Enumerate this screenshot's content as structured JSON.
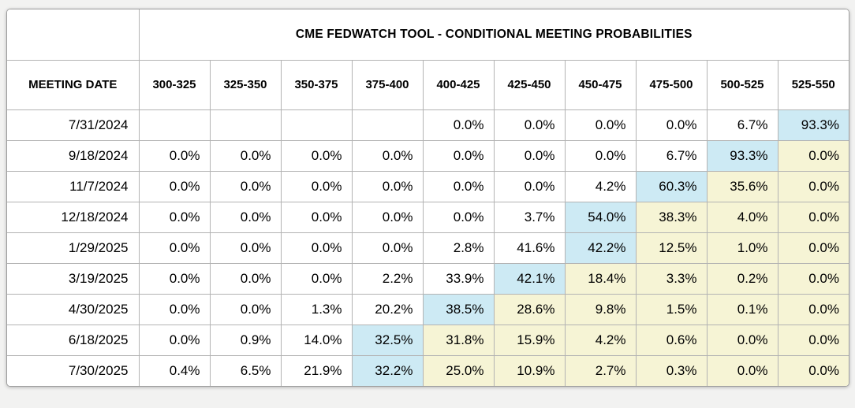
{
  "title": "CME FEDWATCH TOOL - CONDITIONAL MEETING PROBABILITIES",
  "table": {
    "date_header": "MEETING DATE",
    "rate_headers": [
      "300-325",
      "325-350",
      "350-375",
      "375-400",
      "400-425",
      "425-450",
      "450-475",
      "475-500",
      "500-525",
      "525-550"
    ],
    "rows": [
      {
        "date": "7/31/2024",
        "values": [
          "",
          "",
          "",
          "",
          "0.0%",
          "0.0%",
          "0.0%",
          "0.0%",
          "6.7%",
          "93.3%"
        ],
        "max_index": 9
      },
      {
        "date": "9/18/2024",
        "values": [
          "0.0%",
          "0.0%",
          "0.0%",
          "0.0%",
          "0.0%",
          "0.0%",
          "0.0%",
          "6.7%",
          "93.3%",
          "0.0%"
        ],
        "max_index": 8
      },
      {
        "date": "11/7/2024",
        "values": [
          "0.0%",
          "0.0%",
          "0.0%",
          "0.0%",
          "0.0%",
          "0.0%",
          "4.2%",
          "60.3%",
          "35.6%",
          "0.0%"
        ],
        "max_index": 7
      },
      {
        "date": "12/18/2024",
        "values": [
          "0.0%",
          "0.0%",
          "0.0%",
          "0.0%",
          "0.0%",
          "3.7%",
          "54.0%",
          "38.3%",
          "4.0%",
          "0.0%"
        ],
        "max_index": 6
      },
      {
        "date": "1/29/2025",
        "values": [
          "0.0%",
          "0.0%",
          "0.0%",
          "0.0%",
          "2.8%",
          "41.6%",
          "42.2%",
          "12.5%",
          "1.0%",
          "0.0%"
        ],
        "max_index": 6
      },
      {
        "date": "3/19/2025",
        "values": [
          "0.0%",
          "0.0%",
          "0.0%",
          "2.2%",
          "33.9%",
          "42.1%",
          "18.4%",
          "3.3%",
          "0.2%",
          "0.0%"
        ],
        "max_index": 5
      },
      {
        "date": "4/30/2025",
        "values": [
          "0.0%",
          "0.0%",
          "1.3%",
          "20.2%",
          "38.5%",
          "28.6%",
          "9.8%",
          "1.5%",
          "0.1%",
          "0.0%"
        ],
        "max_index": 4
      },
      {
        "date": "6/18/2025",
        "values": [
          "0.0%",
          "0.9%",
          "14.0%",
          "32.5%",
          "31.8%",
          "15.9%",
          "4.2%",
          "0.6%",
          "0.0%",
          "0.0%"
        ],
        "max_index": 3
      },
      {
        "date": "7/30/2025",
        "values": [
          "0.4%",
          "6.5%",
          "21.9%",
          "32.2%",
          "25.0%",
          "10.9%",
          "2.7%",
          "0.3%",
          "0.0%",
          "0.0%"
        ],
        "max_index": 3
      }
    ]
  },
  "colors": {
    "max_highlight": "#cdeaf4",
    "tail_highlight": "#f6f4d5",
    "border": "#b3b3b3",
    "page_background": "#f2f2f1"
  },
  "chart_data": {
    "type": "table",
    "title": "CME FEDWATCH TOOL - CONDITIONAL MEETING PROBABILITIES",
    "units": "percent",
    "columns": [
      "MEETING DATE",
      "300-325",
      "325-350",
      "350-375",
      "375-400",
      "400-425",
      "425-450",
      "450-475",
      "475-500",
      "500-525",
      "525-550"
    ],
    "rows": [
      [
        "7/31/2024",
        null,
        null,
        null,
        null,
        0.0,
        0.0,
        0.0,
        0.0,
        6.7,
        93.3
      ],
      [
        "9/18/2024",
        0.0,
        0.0,
        0.0,
        0.0,
        0.0,
        0.0,
        0.0,
        6.7,
        93.3,
        0.0
      ],
      [
        "11/7/2024",
        0.0,
        0.0,
        0.0,
        0.0,
        0.0,
        0.0,
        4.2,
        60.3,
        35.6,
        0.0
      ],
      [
        "12/18/2024",
        0.0,
        0.0,
        0.0,
        0.0,
        0.0,
        3.7,
        54.0,
        38.3,
        4.0,
        0.0
      ],
      [
        "1/29/2025",
        0.0,
        0.0,
        0.0,
        0.0,
        2.8,
        41.6,
        42.2,
        12.5,
        1.0,
        0.0
      ],
      [
        "3/19/2025",
        0.0,
        0.0,
        0.0,
        2.2,
        33.9,
        42.1,
        18.4,
        3.3,
        0.2,
        0.0
      ],
      [
        "4/30/2025",
        0.0,
        0.0,
        1.3,
        20.2,
        38.5,
        28.6,
        9.8,
        1.5,
        0.1,
        0.0
      ],
      [
        "6/18/2025",
        0.0,
        0.9,
        14.0,
        32.5,
        31.8,
        15.9,
        4.2,
        0.6,
        0.0,
        0.0
      ],
      [
        "7/30/2025",
        0.4,
        6.5,
        21.9,
        32.2,
        25.0,
        10.9,
        2.7,
        0.3,
        0.0,
        0.0
      ]
    ],
    "layout_hints": {
      "blue_cell": "highest probability in each row",
      "yellow_cells": "cells to the right of the row maximum"
    }
  }
}
